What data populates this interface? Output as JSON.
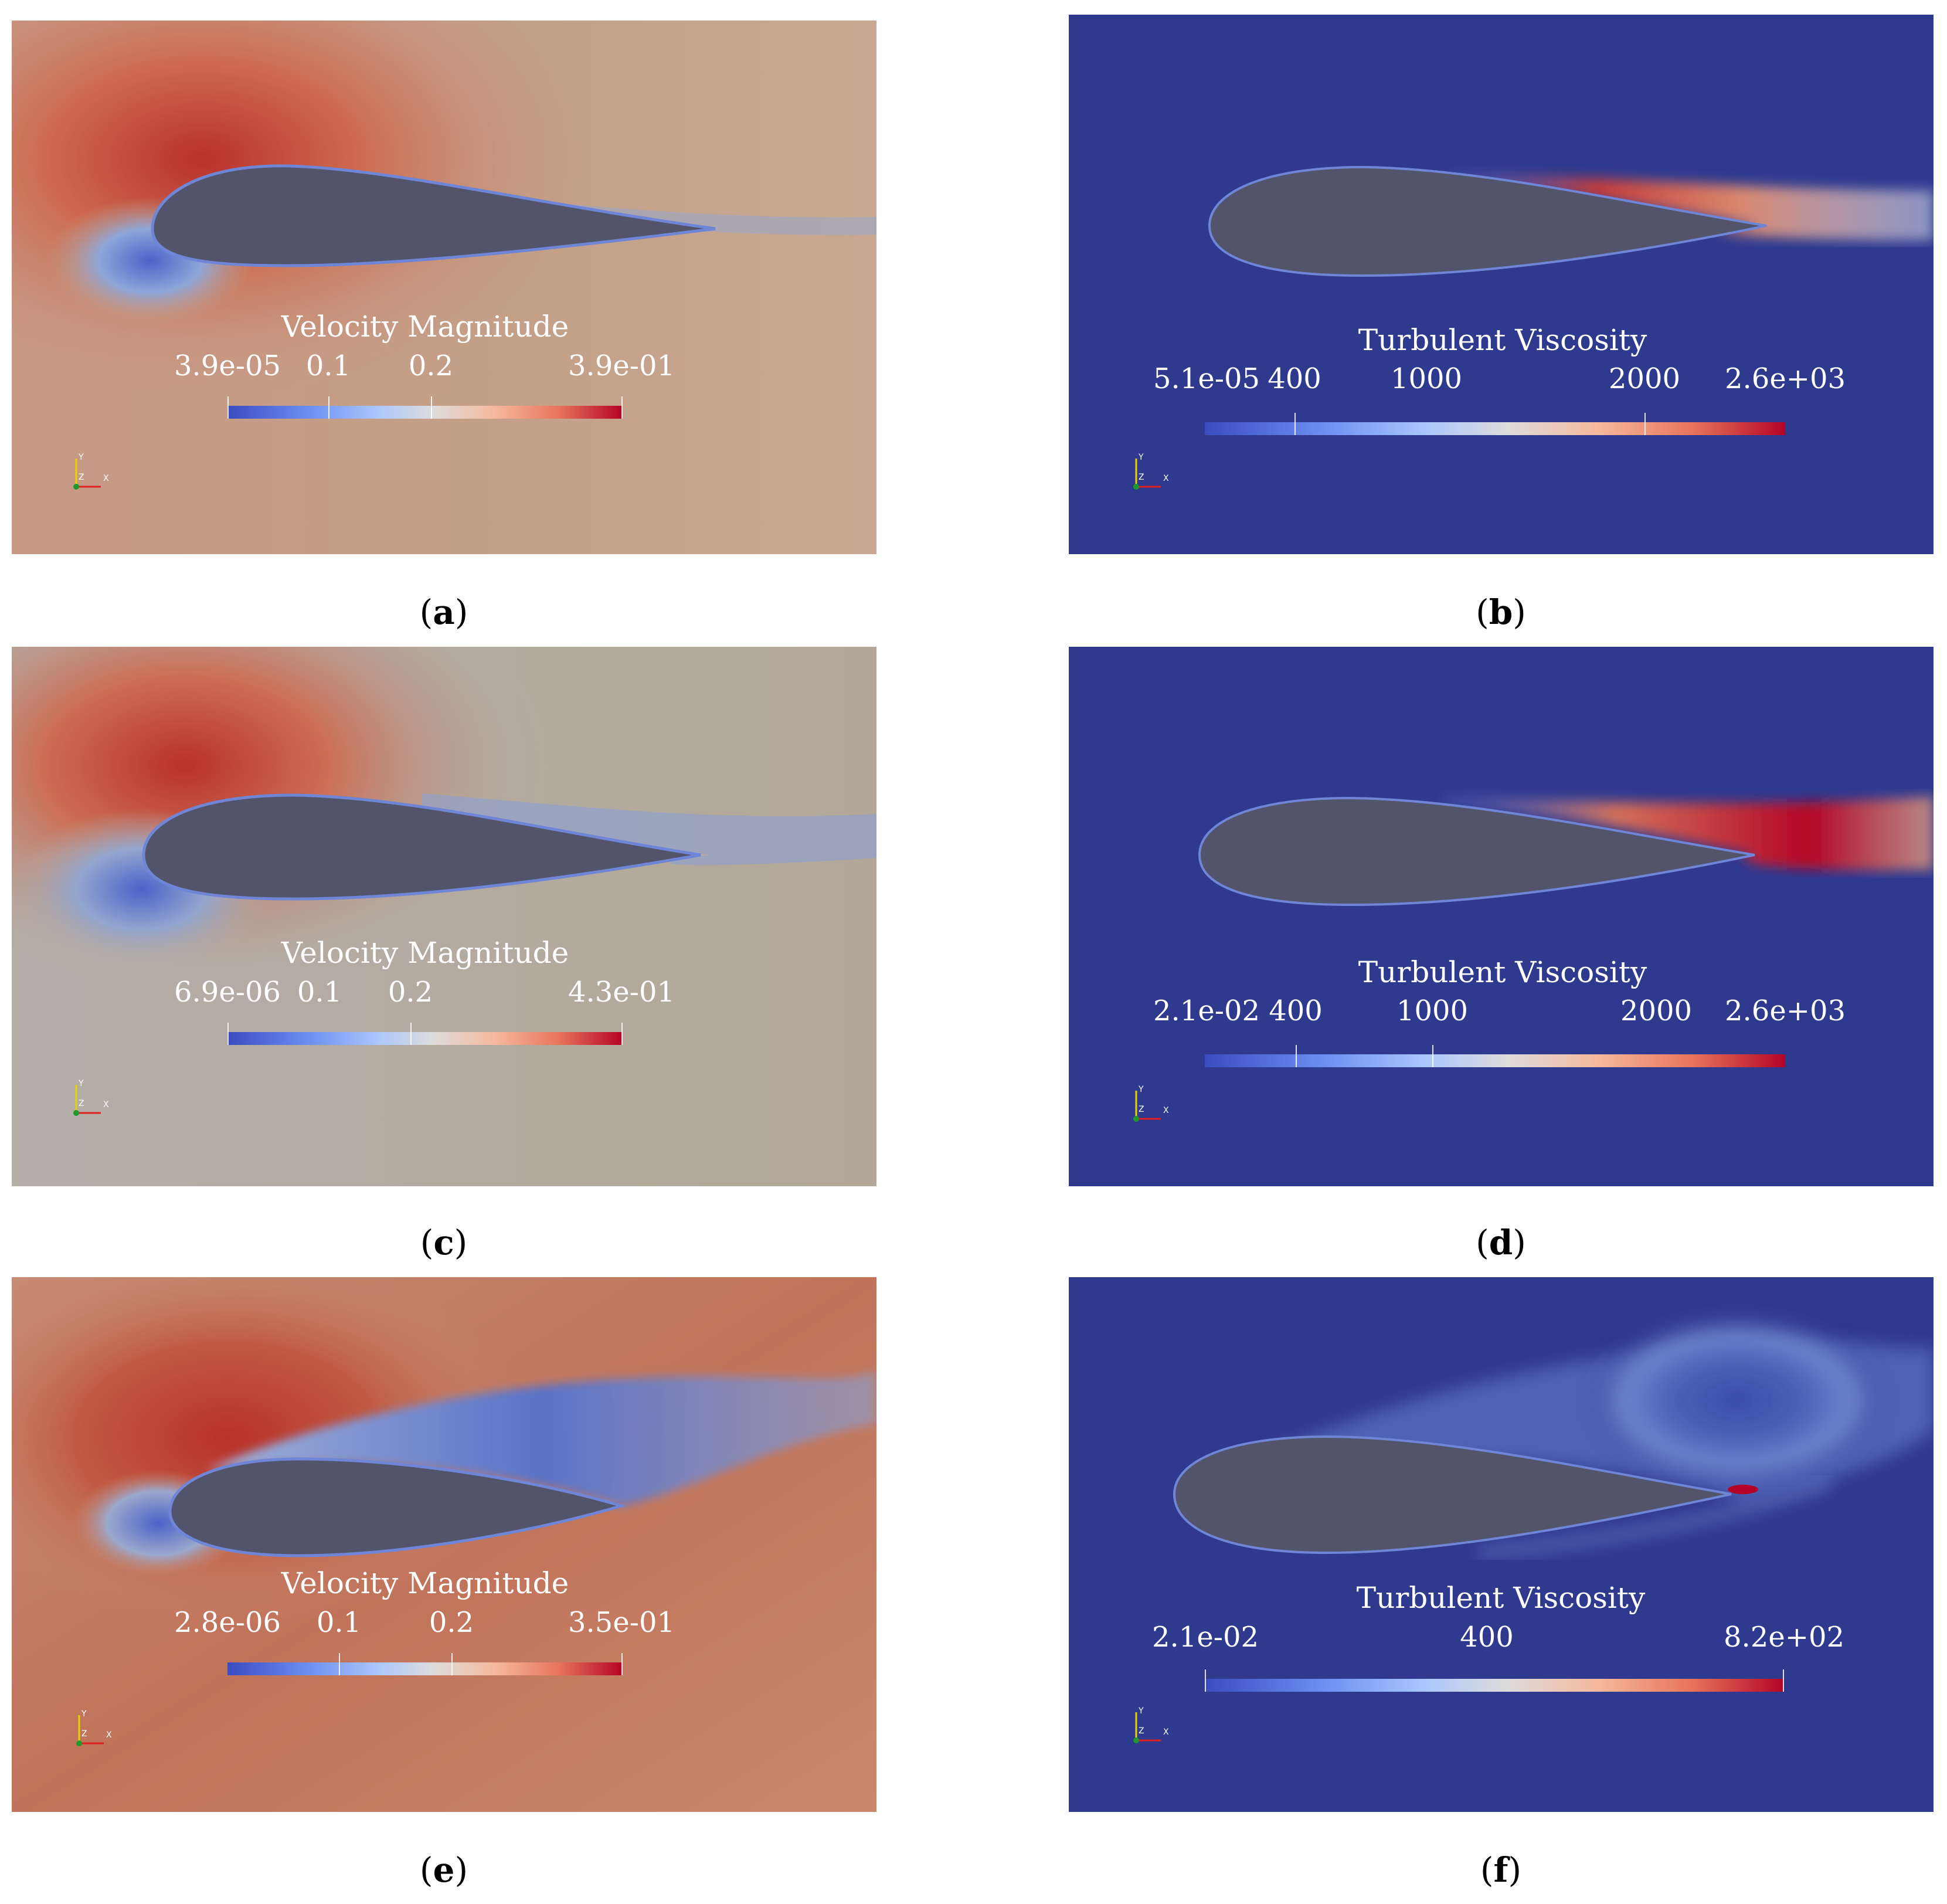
{
  "panels": [
    {
      "id": "a",
      "colorbar_title": "Velocity Magnitude",
      "ticks": [
        "3.9e-05",
        "0.1",
        "0.2",
        "3.9e-01"
      ],
      "caption": "a",
      "colors": {
        "background": "#c49a80",
        "accent": "#b7302a"
      }
    },
    {
      "id": "b",
      "colorbar_title": "Turbulent Viscosity",
      "ticks": [
        "5.1e-05",
        "400",
        "1000",
        "2000",
        "2.6e+03"
      ],
      "caption": "b",
      "colors": {
        "background": "#2f3a8f",
        "accent": "#b40426"
      }
    },
    {
      "id": "c",
      "colorbar_title": "Velocity Magnitude",
      "ticks": [
        "6.9e-06",
        "0.1",
        "0.2",
        "4.3e-01"
      ],
      "caption": "c",
      "colors": {
        "background": "#b3aba0",
        "accent": "#b7302a"
      }
    },
    {
      "id": "d",
      "colorbar_title": "Turbulent Viscosity",
      "ticks": [
        "2.1e-02",
        "400",
        "1000",
        "2000",
        "2.6e+03"
      ],
      "caption": "d",
      "colors": {
        "background": "#2f3a8f",
        "accent": "#b40426"
      }
    },
    {
      "id": "e",
      "colorbar_title": "Velocity Magnitude",
      "ticks": [
        "2.8e-06",
        "0.1",
        "0.2",
        "3.5e-01"
      ],
      "caption": "e",
      "colors": {
        "background": "#c7866a",
        "accent": "#b7302a"
      }
    },
    {
      "id": "f",
      "colorbar_title": "Turbulent Viscosity",
      "ticks": [
        "2.1e-02",
        "400",
        "8.2e+02"
      ],
      "caption": "f",
      "colors": {
        "background": "#2f3a8f",
        "accent": "#b40426"
      }
    }
  ],
  "axes_labels": {
    "y": "Y",
    "z": "Z",
    "x": "X"
  },
  "caption_brackets": {
    "open": "(",
    "close": ")"
  },
  "colors": {
    "airfoil": "#52546c",
    "cmap_low": "#3b4cc0",
    "cmap_high": "#b40426"
  }
}
